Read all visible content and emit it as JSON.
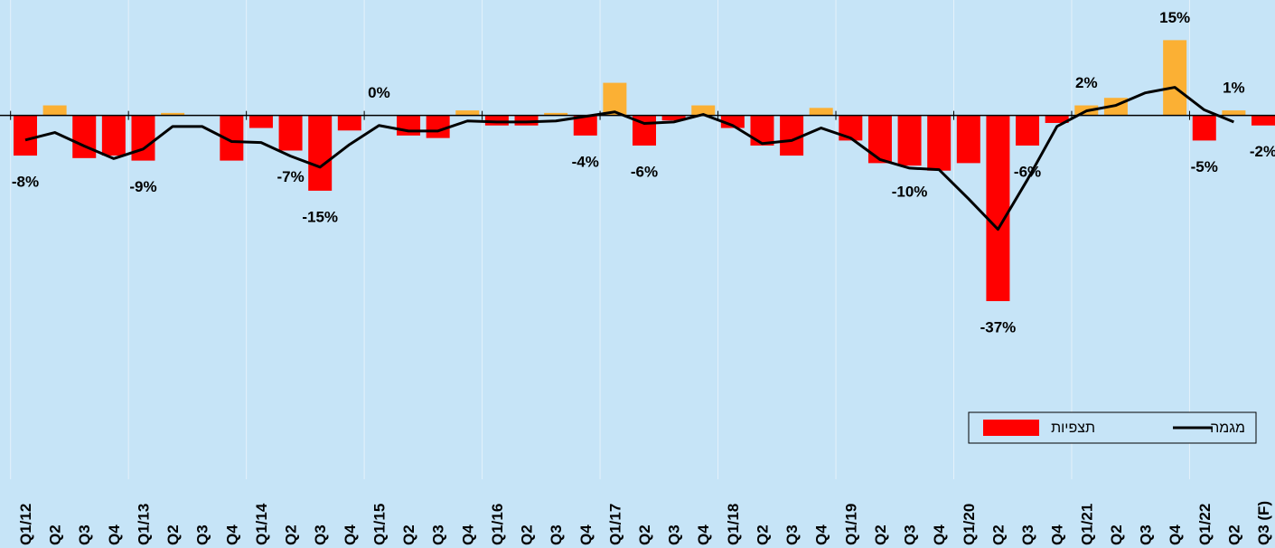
{
  "chart_data": {
    "type": "bar",
    "categories": [
      "Q1/12",
      "Q2",
      "Q3",
      "Q4",
      "Q1/13",
      "Q2",
      "Q3",
      "Q4",
      "Q1/14",
      "Q2",
      "Q3",
      "Q4",
      "Q1/15",
      "Q2",
      "Q3",
      "Q4",
      "Q1/16",
      "Q2",
      "Q3",
      "Q4",
      "Q1/17",
      "Q2",
      "Q3",
      "Q4",
      "Q1/18",
      "Q2",
      "Q3",
      "Q4",
      "Q1/19",
      "Q2",
      "Q3",
      "Q4",
      "Q1/20",
      "Q2",
      "Q3",
      "Q4",
      "Q1/21",
      "Q2",
      "Q3",
      "Q4",
      "Q1/22",
      "Q2",
      "Q3 (F)"
    ],
    "ylim": [
      -69,
      23
    ],
    "colors": {
      "negative": "#ff0000",
      "positive": "#fbb034"
    },
    "legend": "lower right",
    "series": [
      {
        "name": "תצפיות",
        "type": "bar",
        "color": "#ff0000",
        "values": [
          -8,
          2,
          -8.5,
          -8,
          -9,
          0.5,
          0,
          -9,
          -2.5,
          -7,
          -15,
          -3,
          0,
          -4,
          -4.5,
          1,
          -2,
          -2,
          0.5,
          -4,
          6.5,
          -6,
          -1,
          2,
          -2.5,
          -6,
          -8,
          1.5,
          -5,
          -9.5,
          -10,
          -11,
          -9.5,
          -37,
          -6,
          -1.5,
          2,
          3.5,
          0,
          15,
          -5,
          1,
          -2
        ],
        "value_labels": [
          "-8%",
          null,
          null,
          null,
          "-9%",
          null,
          null,
          null,
          null,
          "-7%",
          "-15%",
          null,
          "0%",
          null,
          null,
          null,
          null,
          null,
          null,
          "-4%",
          null,
          "-6%",
          null,
          null,
          null,
          null,
          null,
          null,
          null,
          null,
          "-10%",
          null,
          null,
          "-37%",
          "-6%",
          null,
          "2%",
          null,
          null,
          "15%",
          "-5%",
          "1%",
          "-2%"
        ]
      },
      {
        "name": "מגמה",
        "type": "line",
        "color": "#000000",
        "values": [
          -4.9,
          -3.4,
          -6.1,
          -8.6,
          -6.7,
          -2.2,
          -2.2,
          -5.2,
          -5.4,
          -8.1,
          -10.3,
          -5.8,
          -2,
          -3.1,
          -3.1,
          -1.1,
          -1.3,
          -1.3,
          -1.1,
          -0.2,
          0.7,
          -1.6,
          -1.3,
          0.2,
          -2,
          -5.6,
          -5,
          -2.5,
          -4.5,
          -8.8,
          -10.5,
          -10.8,
          -16.6,
          -22.7,
          -12.8,
          -2.2,
          0.9,
          2,
          4.5,
          5.6,
          1.1,
          -1.3,
          null
        ]
      }
    ]
  }
}
